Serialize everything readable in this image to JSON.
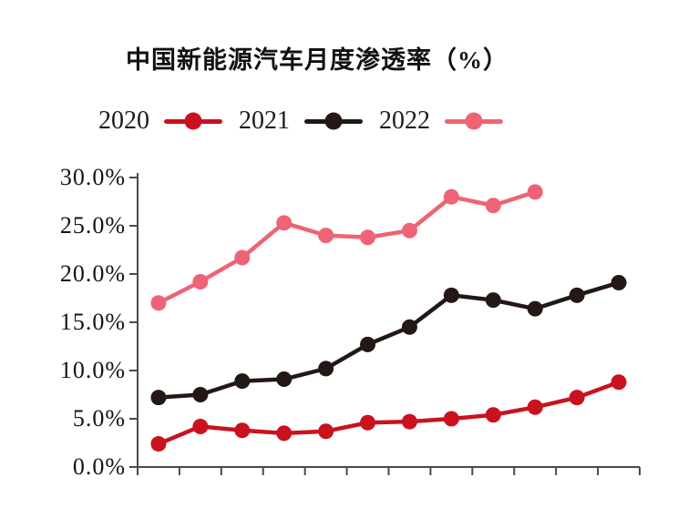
{
  "chart_data": {
    "type": "line",
    "title": "中国新能源汽车月度渗透率（%）",
    "xlabel": "",
    "ylabel": "",
    "ylim": [
      0,
      30
    ],
    "y_tick_step": 5,
    "y_tick_labels": [
      "30.0%",
      "25.0%",
      "20.0%",
      "15.0%",
      "10.0%",
      "5.0%",
      "0.0%"
    ],
    "x_slots": 12,
    "x_tick_labels_visible": false,
    "grid": false,
    "legend_position": "top",
    "axis_color": "#4a4a4a",
    "series": [
      {
        "name": "2020",
        "color": "#c9121e",
        "values": [
          2.4,
          4.2,
          3.8,
          3.5,
          3.7,
          4.6,
          4.7,
          5.0,
          5.4,
          6.2,
          7.2,
          8.8
        ]
      },
      {
        "name": "2021",
        "color": "#231815",
        "values": [
          7.2,
          7.5,
          8.9,
          9.1,
          10.2,
          12.7,
          14.5,
          17.8,
          17.3,
          16.4,
          17.8,
          19.1
        ]
      },
      {
        "name": "2022",
        "color": "#ee6375",
        "values": [
          17.0,
          19.2,
          21.7,
          25.3,
          24.0,
          23.8,
          24.5,
          28.0,
          27.1,
          28.5
        ]
      }
    ]
  }
}
